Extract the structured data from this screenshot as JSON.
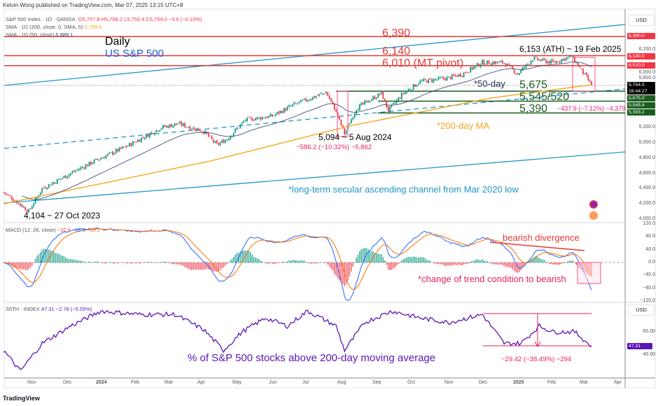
{
  "header": {
    "published": "Kelvin-Wong published on TradingView.com, Mar 07, 2025 13:15 UTC+8"
  },
  "legend": {
    "symbol": "S&P 500 Index · 1D · OANDA",
    "o": "O5,757.8",
    "h": "H5,768.2",
    "l": "L5,750.4",
    "c": "C5,754.0",
    "chg": "−5.6 (−0.10%)",
    "sma200": "SMA · 1D (200, close, 0, SMA, 5)",
    "sma200_val": "5,758.6",
    "sma50": "SMA · 1D (50, close)",
    "sma50_val": "5,989.1",
    "macd": "MACD (12, 26, close)",
    "macd_v1": "−32.9",
    "macd_v2": "−66.0",
    "macd_v3": "−33.1",
    "breadth": "S5TH · INDEX",
    "breadth_v": "47.31",
    "breadth_chg": "−2.78 (−5.55%)"
  },
  "currency": "USD",
  "price_axis": [
    "6,200.0",
    "6,000.0",
    "5,800.0",
    "5,200.0",
    "5,000.0",
    "4,800.0",
    "4,600.0",
    "4,400.0",
    "4,200.0",
    "4,000.0"
  ],
  "price_tags": {
    "p6390": "6,390.0",
    "p6140": "6,140.0",
    "p6010": "6,010.0",
    "last": "5,754.0",
    "timer": "16:44:27",
    "p5675": "5,675.0",
    "p5545": "5,545.4",
    "p5393": "5,393.2"
  },
  "macd_axis": [
    "120.0",
    "80.0",
    "40.0",
    "0.0",
    "−40.0",
    "−80.0",
    "−120.0"
  ],
  "breadth_axis": [
    "60.00",
    "40.00"
  ],
  "breadth_tag": "47.31",
  "time_axis": [
    "Nov",
    "Dec",
    "2024",
    "Feb",
    "Mar",
    "Apr",
    "May",
    "Jun",
    "Jul",
    "Aug",
    "Sep",
    "Oct",
    "Nov",
    "Dec",
    "2025",
    "Feb",
    "Mar",
    "Apr"
  ],
  "annotations": {
    "daily": "Daily",
    "title": "US S&P 500",
    "r6390": "6,390",
    "r6140": "6,140",
    "r6010": "6,010 (MT pivot)",
    "ath": "6,153 (ATH) ~ 19 Feb 2025",
    "ma50": "*50-day",
    "s5675": "5,675",
    "s5545": "5,545/520",
    "s5390": "5,390",
    "drop2": "−437.9 (−7.12%) −4,379",
    "low_aug": "5,094 ~ 5 Aug 2024",
    "drop1": "−586.2 (−10.32%) −5,862",
    "ma200": "*200-day MA",
    "channel": "*long-term secular ascending channel from Mar 2020 low",
    "low_oct": "4,104 ~ 27 Oct 2023",
    "bear_div": "bearish divergence",
    "trend": "*change of trend condition to bearish",
    "breadth_title": "% of S&P 500 stocks above 200-day moving average",
    "breadth_drop": "−29.42 (−38.49%) −294"
  },
  "footer": {
    "brand": "TradingView"
  },
  "colors": {
    "up": "#089981",
    "down": "#f23645",
    "ma200": "#f5a623",
    "ma50": "#2a3a66",
    "macd": "#2962ff",
    "signal": "#ff6d00",
    "breadth": "#5b16b5",
    "support": "#1b5e20",
    "resist": "#e53935",
    "channel": "#2196c9"
  },
  "chart_data": [
    {
      "type": "candlestick",
      "title": "S&P 500 Index · 1D",
      "x_unit": "trading day since ~10 Oct 2023",
      "ylim": [
        4000,
        6450
      ],
      "close_waypoints": [
        [
          0,
          4350
        ],
        [
          6,
          4260
        ],
        [
          15,
          4104
        ],
        [
          23,
          4400
        ],
        [
          40,
          4600
        ],
        [
          56,
          4780
        ],
        [
          73,
          4950
        ],
        [
          94,
          5200
        ],
        [
          104,
          5250
        ],
        [
          119,
          5150
        ],
        [
          127,
          4970
        ],
        [
          133,
          5050
        ],
        [
          144,
          5300
        ],
        [
          160,
          5350
        ],
        [
          173,
          5500
        ],
        [
          192,
          5660
        ],
        [
          197,
          5450
        ],
        [
          203,
          5120
        ],
        [
          210,
          5450
        ],
        [
          225,
          5650
        ],
        [
          229,
          5420
        ],
        [
          238,
          5650
        ],
        [
          248,
          5800
        ],
        [
          265,
          5850
        ],
        [
          273,
          5900
        ],
        [
          285,
          6050
        ],
        [
          298,
          6050
        ],
        [
          306,
          5900
        ],
        [
          315,
          6100
        ],
        [
          327,
          6050
        ],
        [
          338,
          6130
        ],
        [
          344,
          5950
        ],
        [
          350,
          5754
        ]
      ],
      "sma200_waypoints": [
        [
          0,
          4200
        ],
        [
          123,
          4760
        ],
        [
          206,
          5220
        ],
        [
          290,
          5585
        ],
        [
          350,
          5758.6
        ]
      ],
      "levels": {
        "resistance": [
          6390,
          6140,
          6010
        ],
        "support": [
          5675,
          5545,
          5390
        ]
      }
    },
    {
      "type": "line",
      "title": "MACD (12, 26, close)",
      "ylim": [
        -120,
        120
      ],
      "last": {
        "macd": -66.0,
        "signal": -33.1,
        "hist": -32.9
      }
    },
    {
      "type": "line",
      "title": "S5TH",
      "ylim": [
        20,
        90
      ],
      "points": [
        [
          0,
          44
        ],
        [
          10,
          26
        ],
        [
          23,
          50
        ],
        [
          40,
          65
        ],
        [
          58,
          78
        ],
        [
          81,
          75
        ],
        [
          102,
          75
        ],
        [
          119,
          62
        ],
        [
          131,
          44
        ],
        [
          142,
          60
        ],
        [
          156,
          72
        ],
        [
          169,
          65
        ],
        [
          181,
          78
        ],
        [
          198,
          65
        ],
        [
          203,
          44
        ],
        [
          215,
          68
        ],
        [
          231,
          78
        ],
        [
          248,
          72
        ],
        [
          265,
          68
        ],
        [
          285,
          75
        ],
        [
          298,
          50
        ],
        [
          308,
          50
        ],
        [
          319,
          65
        ],
        [
          327,
          60
        ],
        [
          340,
          60
        ],
        [
          350,
          47.31
        ]
      ]
    }
  ]
}
